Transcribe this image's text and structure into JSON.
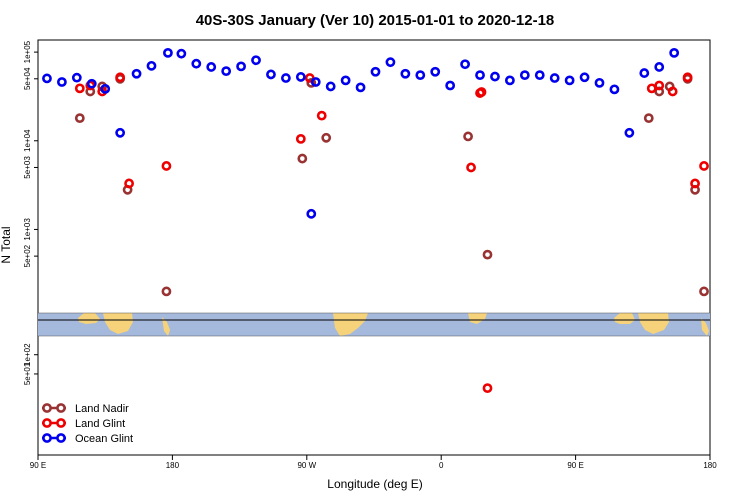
{
  "chart_data": {
    "type": "scatter",
    "title": "40S-30S January (Ver 10)   2015-01-01 to 2020-12-18",
    "xlabel": "Longitude (deg E)",
    "ylabel": "N Total",
    "x_ticks": [
      {
        "value": 90,
        "label": "90 E"
      },
      {
        "value": 180,
        "label": "180"
      },
      {
        "value": 270,
        "label": "90 W"
      },
      {
        "value": 360,
        "label": "0"
      },
      {
        "value": 450,
        "label": "90 E"
      },
      {
        "value": 540,
        "label": "180"
      }
    ],
    "xlim": [
      90,
      540
    ],
    "y_scale": "log",
    "upper_panel": {
      "ylim": [
        130,
        130000
      ],
      "y_ticks": [
        {
          "value": 100000,
          "label": "1e+05"
        },
        {
          "value": 50000,
          "label": "5e+04"
        },
        {
          "value": 10000,
          "label": "1e+04"
        },
        {
          "value": 5000,
          "label": "5e+03"
        },
        {
          "value": 1000,
          "label": "1e+03"
        },
        {
          "value": 500,
          "label": "5e+02"
        }
      ]
    },
    "lower_panel": {
      "ylim": [
        3,
        170
      ],
      "y_ticks": [
        {
          "value": 100,
          "label": "1e+02"
        },
        {
          "value": 50,
          "label": "5e+01"
        }
      ]
    },
    "legend_position": "bottom-left",
    "series": [
      {
        "name": "Land Nadir",
        "color": "#993333",
        "points": [
          [
            118,
            18000
          ],
          [
            125,
            36000
          ],
          [
            133,
            41000
          ],
          [
            145,
            50000
          ],
          [
            150,
            2800
          ],
          [
            176,
            200
          ],
          [
            267,
            6300
          ],
          [
            273,
            45000
          ],
          [
            283,
            10800
          ],
          [
            378,
            11200
          ],
          [
            391,
            520
          ],
          [
            499,
            18000
          ],
          [
            506,
            36000
          ],
          [
            513,
            41000
          ],
          [
            525,
            50000
          ],
          [
            530,
            2800
          ],
          [
            536,
            200
          ]
        ]
      },
      {
        "name": "Land Glint",
        "color": "#ee0000",
        "points": [
          [
            118,
            39000
          ],
          [
            125,
            42000
          ],
          [
            133,
            36000
          ],
          [
            145,
            52000
          ],
          [
            151,
            3300
          ],
          [
            176,
            5200
          ],
          [
            266,
            10500
          ],
          [
            272,
            51000
          ],
          [
            280,
            19200
          ],
          [
            380,
            5000
          ],
          [
            386,
            34500
          ],
          [
            387,
            35500
          ],
          [
            391,
            30
          ],
          [
            501,
            39000
          ],
          [
            506,
            42000
          ],
          [
            515,
            36000
          ],
          [
            525,
            52000
          ],
          [
            530,
            3300
          ],
          [
            536,
            5200
          ]
        ]
      },
      {
        "name": "Ocean Glint",
        "color": "#0000ee",
        "points": [
          [
            96,
            50500
          ],
          [
            106,
            46000
          ],
          [
            116,
            51500
          ],
          [
            126,
            44000
          ],
          [
            135,
            38500
          ],
          [
            145,
            12300
          ],
          [
            156,
            57000
          ],
          [
            166,
            70000
          ],
          [
            177,
            98000
          ],
          [
            186,
            96000
          ],
          [
            196,
            74000
          ],
          [
            206,
            68000
          ],
          [
            216,
            61000
          ],
          [
            226,
            69000
          ],
          [
            236,
            81000
          ],
          [
            246,
            56000
          ],
          [
            256,
            51000
          ],
          [
            266,
            52500
          ],
          [
            276,
            46000
          ],
          [
            273,
            1500
          ],
          [
            286,
            41000
          ],
          [
            296,
            48000
          ],
          [
            306,
            40000
          ],
          [
            316,
            60000
          ],
          [
            326,
            77000
          ],
          [
            336,
            57000
          ],
          [
            346,
            55000
          ],
          [
            356,
            60000
          ],
          [
            366,
            42000
          ],
          [
            376,
            73000
          ],
          [
            386,
            55000
          ],
          [
            396,
            53000
          ],
          [
            406,
            48000
          ],
          [
            416,
            55000
          ],
          [
            426,
            55000
          ],
          [
            436,
            51000
          ],
          [
            446,
            48000
          ],
          [
            456,
            52000
          ],
          [
            466,
            45000
          ],
          [
            476,
            38000
          ],
          [
            486,
            12300
          ],
          [
            496,
            58000
          ],
          [
            506,
            68000
          ],
          [
            516,
            98000
          ]
        ]
      }
    ]
  }
}
